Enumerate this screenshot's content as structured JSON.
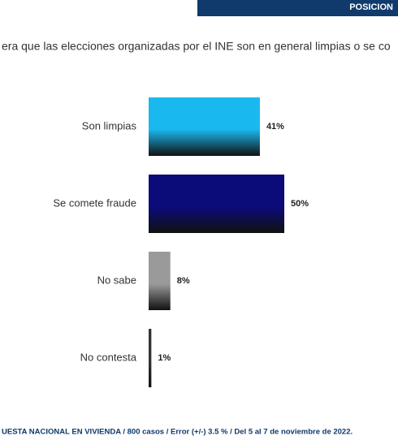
{
  "header": "POSICION",
  "chart_data": {
    "type": "bar",
    "title": "era que las elecciones organizadas por el INE son en general limpias o se co",
    "footnote": "UESTA NACIONAL EN VIVIENDA / 800 casos / Error (+/-) 3.5 % / Del 5 al 7 de noviembre de 2022.",
    "categories": [
      "Son limpias",
      "Se comete fraude",
      "No sabe",
      "No contesta"
    ],
    "values": [
      41,
      50,
      8,
      1
    ],
    "value_labels": [
      "41%",
      "50%",
      "8%",
      "1%"
    ],
    "colors": [
      "#19b8ee",
      "#0b0b7a",
      "#9a9a9a",
      "#333333"
    ]
  }
}
